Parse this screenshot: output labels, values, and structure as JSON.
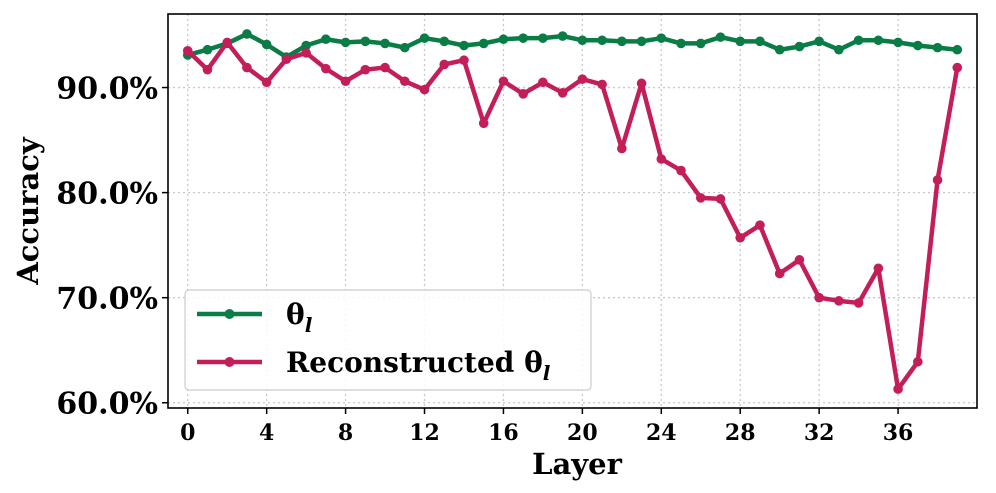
{
  "chart_data": {
    "type": "line",
    "xlabel": "Layer",
    "ylabel": "Accuracy",
    "xlim": [
      -1,
      40
    ],
    "ylim": [
      59.5,
      97.0
    ],
    "xticks": [
      0,
      4,
      8,
      12,
      16,
      20,
      24,
      28,
      32,
      36
    ],
    "xtick_labels": [
      "0",
      "4",
      "8",
      "12",
      "16",
      "20",
      "24",
      "28",
      "32",
      "36"
    ],
    "yticks": [
      60,
      70,
      80,
      90
    ],
    "ytick_labels": [
      "60.0%",
      "70.0%",
      "80.0%",
      "90.0%"
    ],
    "grid": true,
    "legend_position": "lower-left",
    "x": [
      0,
      1,
      2,
      3,
      4,
      5,
      6,
      7,
      8,
      9,
      10,
      11,
      12,
      13,
      14,
      15,
      16,
      17,
      18,
      19,
      20,
      21,
      22,
      23,
      24,
      25,
      26,
      27,
      28,
      29,
      30,
      31,
      32,
      33,
      34,
      35,
      36,
      37,
      38,
      39
    ],
    "series": [
      {
        "name": "θ",
        "name_sub": "l",
        "color": "#0a7c45",
        "values": [
          93.1,
          93.6,
          94.2,
          95.1,
          94.1,
          92.9,
          94.0,
          94.6,
          94.3,
          94.4,
          94.2,
          93.8,
          94.7,
          94.4,
          94.0,
          94.2,
          94.6,
          94.7,
          94.7,
          94.9,
          94.5,
          94.5,
          94.4,
          94.4,
          94.7,
          94.2,
          94.2,
          94.8,
          94.4,
          94.4,
          93.6,
          93.9,
          94.4,
          93.6,
          94.5,
          94.5,
          94.3,
          94.0,
          93.8,
          93.6
        ]
      },
      {
        "name": "Reconstructed θ",
        "name_sub": "l",
        "color": "#c41e5a",
        "values": [
          93.5,
          91.7,
          94.3,
          91.9,
          90.5,
          92.7,
          93.3,
          91.8,
          90.6,
          91.7,
          91.9,
          90.6,
          89.8,
          92.2,
          92.6,
          86.6,
          90.6,
          89.4,
          90.5,
          89.5,
          90.8,
          90.3,
          84.2,
          90.4,
          83.2,
          82.1,
          79.5,
          79.4,
          75.7,
          76.9,
          72.3,
          73.6,
          70.0,
          69.7,
          69.5,
          72.8,
          61.3,
          63.9,
          81.2,
          91.9
        ]
      }
    ]
  }
}
